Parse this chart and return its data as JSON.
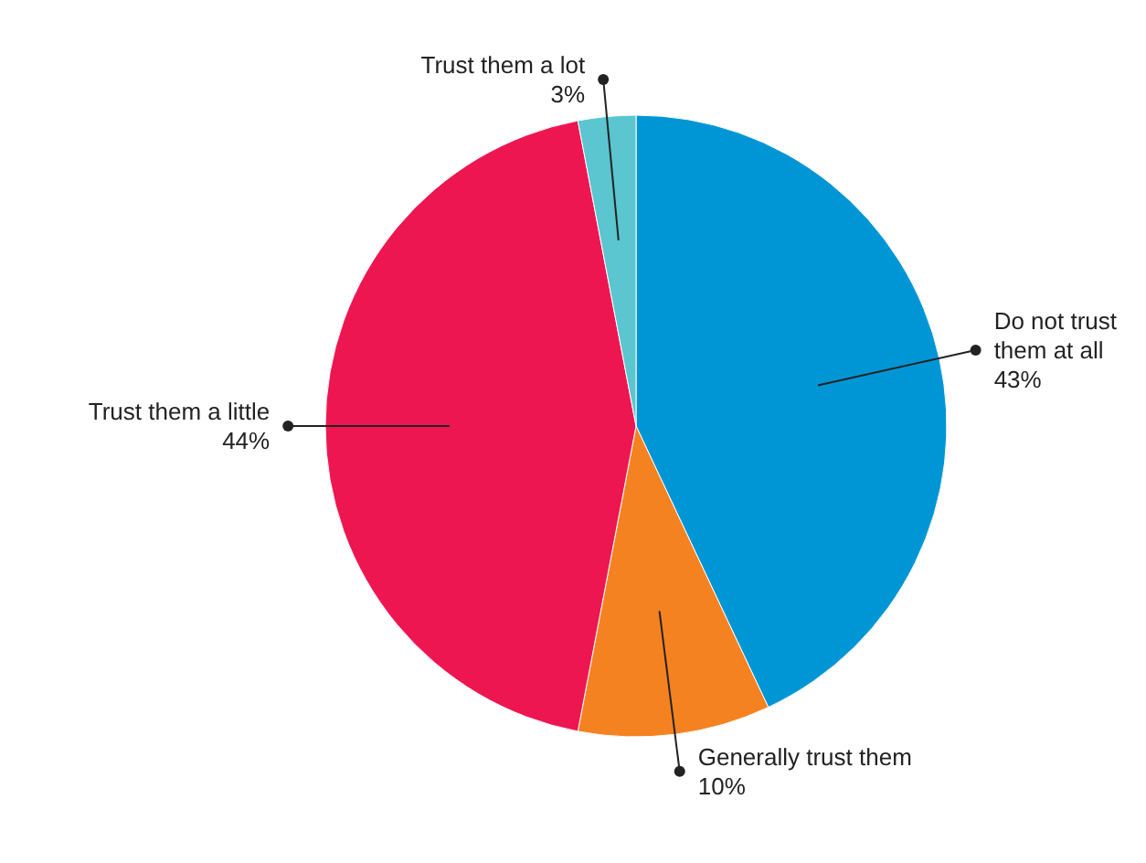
{
  "chart_data": {
    "type": "pie",
    "categories": [
      "Do not trust them at all",
      "Generally trust them",
      "Trust them a little",
      "Trust them a lot"
    ],
    "values": [
      43,
      10,
      44,
      3
    ],
    "value_labels": [
      "43%",
      "10%",
      "44%",
      "3%"
    ],
    "colors": [
      "#0096d6",
      "#f58220",
      "#ee1651",
      "#5bc5d0"
    ]
  }
}
